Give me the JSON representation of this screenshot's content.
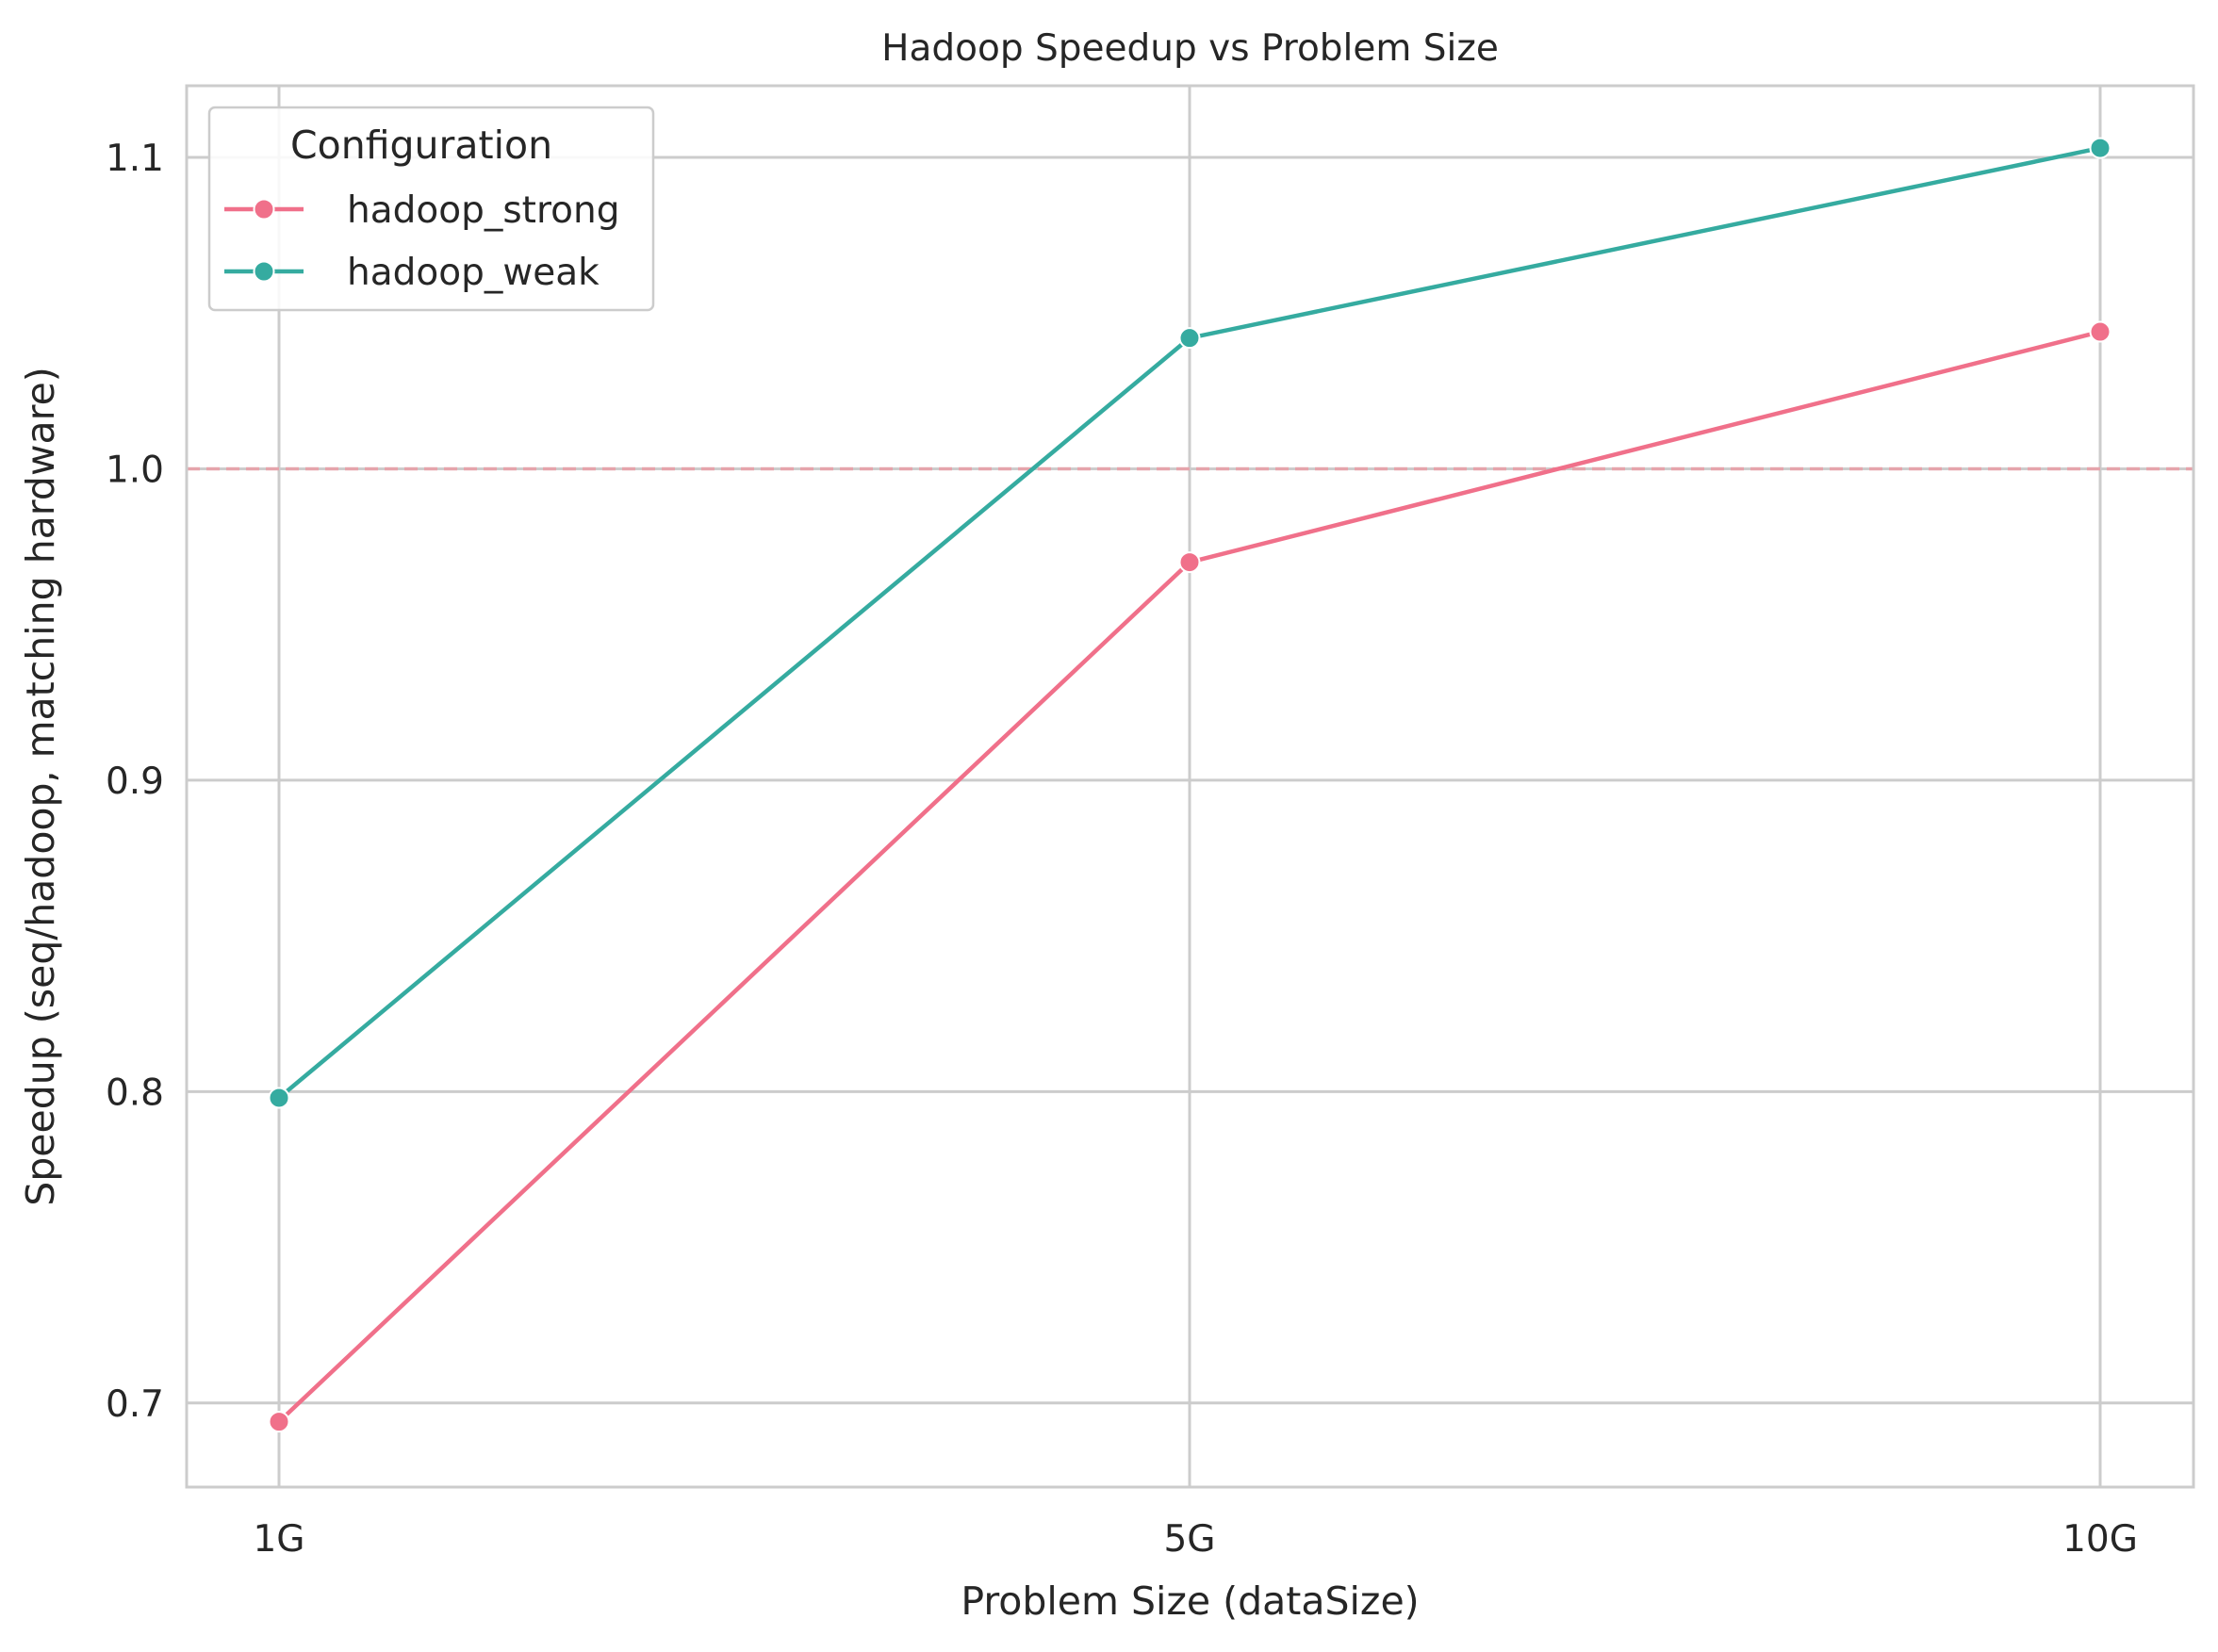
{
  "chart_data": {
    "type": "line",
    "title": "Hadoop Speedup vs Problem Size",
    "xlabel": "Problem Size (dataSize)",
    "ylabel": "Speedup (seq/hadoop, matching hardware)",
    "categories": [
      "1G",
      "5G",
      "10G"
    ],
    "ylim": [
      0.673,
      1.123
    ],
    "yticks": [
      0.7,
      0.8,
      0.9,
      1.0,
      1.1
    ],
    "ytick_labels": [
      "0.7",
      "0.8",
      "0.9",
      "1.0",
      "1.1"
    ],
    "grid": true,
    "reference_line": {
      "y": 1.0,
      "style": "dashed",
      "color": "#e8a0a8"
    },
    "legend": {
      "title": "Configuration",
      "placement": "upper-left"
    },
    "series": [
      {
        "name": "hadoop_strong",
        "color": "#f0708a",
        "values": [
          0.694,
          0.97,
          1.044
        ]
      },
      {
        "name": "hadoop_weak",
        "color": "#35aba0",
        "values": [
          0.798,
          1.042,
          1.103
        ]
      }
    ]
  }
}
